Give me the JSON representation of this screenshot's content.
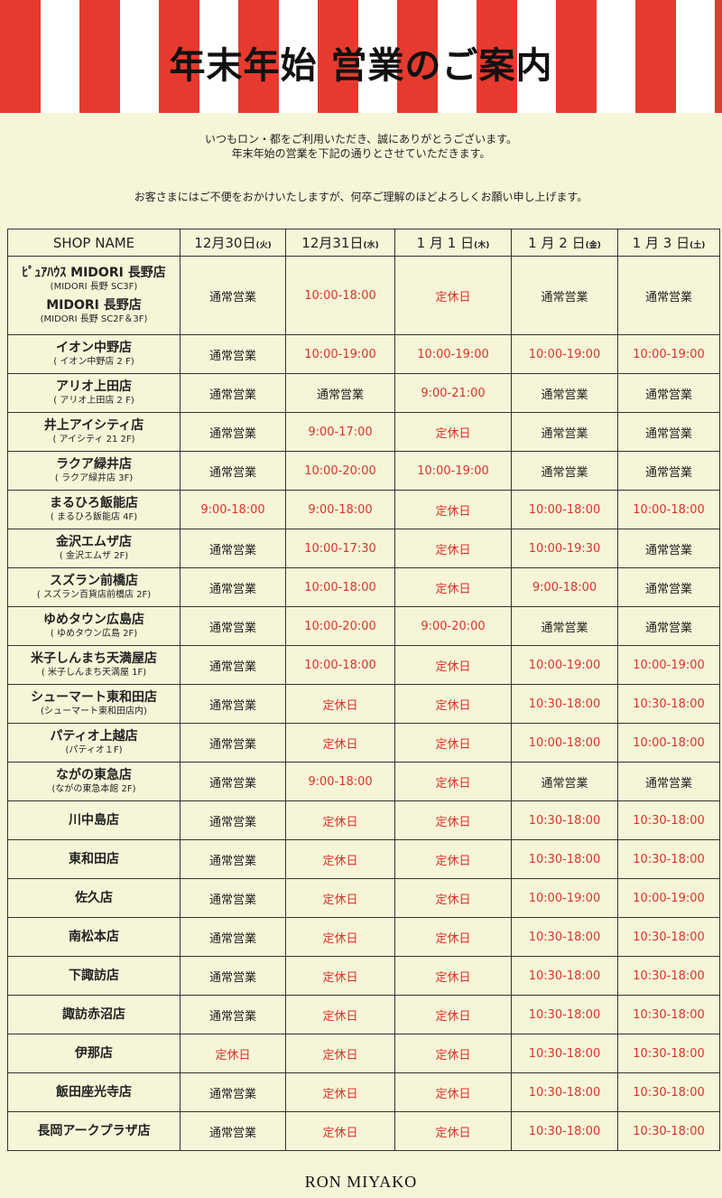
{
  "title": "年末年始 営業のご案内",
  "intro": [
    "いつもロン・都をご利用いただき、誠にありがとうございます。",
    "年末年始の営業を下記の通りとさせていただきます。"
  ],
  "notice": "お客さまにはご不便をおかけいたしますが、何卒ご理解のほどよろしくお願い申し上げます。",
  "colors": {
    "stripe_red": "#e63a2e",
    "background": "#f7f5d8",
    "special_hours": "#d9342b"
  },
  "table": {
    "headers": [
      {
        "main": "SHOP NAME",
        "day": ""
      },
      {
        "main": "12月30日",
        "day": "(火)"
      },
      {
        "main": "12月31日",
        "day": "(水)"
      },
      {
        "main": "1 月 1 日",
        "day": "(木)"
      },
      {
        "main": "1 月 2 日",
        "day": "(金)"
      },
      {
        "main": "1 月 3 日",
        "day": "(土)"
      }
    ],
    "rows": [
      {
        "name": "ﾋﾟｭｱﾊｳｽ MIDORI 長野店",
        "sub": "(MIDORI 長野 SC3F)",
        "name2": "MIDORI 長野店",
        "sub2": "(MIDORI 長野 SC2F＆3F)",
        "cells": [
          "通常営業",
          "10:00-18:00",
          "定休日",
          "通常営業",
          "通常営業"
        ]
      },
      {
        "name": "イオン中野店",
        "sub": "( イオン中野店 2 F)",
        "cells": [
          "通常営業",
          "10:00-19:00",
          "10:00-19:00",
          "10:00-19:00",
          "10:00-19:00"
        ]
      },
      {
        "name": "アリオ上田店",
        "sub": "( アリオ上田店 2 F)",
        "cells": [
          "通常営業",
          "通常営業",
          "9:00-21:00",
          "通常営業",
          "通常営業"
        ]
      },
      {
        "name": "井上アイシティ店",
        "sub": "( アイシティ 21 2F)",
        "cells": [
          "通常営業",
          "9:00-17:00",
          "定休日",
          "通常営業",
          "通常営業"
        ]
      },
      {
        "name": "ラクア緑井店",
        "sub": "( ラクア緑井店 3F)",
        "cells": [
          "通常営業",
          "10:00-20:00",
          "10:00-19:00",
          "通常営業",
          "通常営業"
        ]
      },
      {
        "name": "まるひろ飯能店",
        "sub": "( まるひろ飯能店 4F)",
        "cells": [
          "9:00-18:00",
          "9:00-18:00",
          "定休日",
          "10:00-18:00",
          "10:00-18:00"
        ]
      },
      {
        "name": "金沢エムザ店",
        "sub": "( 金沢エムザ 2F)",
        "cells": [
          "通常営業",
          "10:00-17:30",
          "定休日",
          "10:00-19:30",
          "通常営業"
        ]
      },
      {
        "name": "スズラン前橋店",
        "sub": "( スズラン百貨店前橋店 2F)",
        "cells": [
          "通常営業",
          "10:00-18:00",
          "定休日",
          "9:00-18:00",
          "通常営業"
        ]
      },
      {
        "name": "ゆめタウン広島店",
        "sub": "( ゆめタウン広島 2F)",
        "cells": [
          "通常営業",
          "10:00-20:00",
          "9:00-20:00",
          "通常営業",
          "通常営業"
        ]
      },
      {
        "name": "米子しんまち天満屋店",
        "sub": "( 米子しんまち天満屋 1F)",
        "cells": [
          "通常営業",
          "10:00-18:00",
          "定休日",
          "10:00-19:00",
          "10:00-19:00"
        ]
      },
      {
        "name": "シューマート東和田店",
        "sub": "(シューマート東和田店内)",
        "cells": [
          "通常営業",
          "定休日",
          "定休日",
          "10:30-18:00",
          "10:30-18:00"
        ]
      },
      {
        "name": "パティオ上越店",
        "sub": "(パティオ１F)",
        "cells": [
          "通常営業",
          "定休日",
          "定休日",
          "10:00-18:00",
          "10:00-18:00"
        ]
      },
      {
        "name": "ながの東急店",
        "sub": "(ながの東急本館 2F)",
        "cells": [
          "通常営業",
          "9:00-18:00",
          "定休日",
          "通常営業",
          "通常営業"
        ]
      },
      {
        "name": "川中島店",
        "cells": [
          "通常営業",
          "定休日",
          "定休日",
          "10:30-18:00",
          "10:30-18:00"
        ]
      },
      {
        "name": "東和田店",
        "cells": [
          "通常営業",
          "定休日",
          "定休日",
          "10:30-18:00",
          "10:30-18:00"
        ]
      },
      {
        "name": "佐久店",
        "cells": [
          "通常営業",
          "定休日",
          "定休日",
          "10:00-19:00",
          "10:00-19:00"
        ]
      },
      {
        "name": "南松本店",
        "cells": [
          "通常営業",
          "定休日",
          "定休日",
          "10:30-18:00",
          "10:30-18:00"
        ]
      },
      {
        "name": "下諏訪店",
        "cells": [
          "通常営業",
          "定休日",
          "定休日",
          "10:30-18:00",
          "10:30-18:00"
        ]
      },
      {
        "name": "諏訪赤沼店",
        "cells": [
          "通常営業",
          "定休日",
          "定休日",
          "10:30-18:00",
          "10:30-18:00"
        ]
      },
      {
        "name": "伊那店",
        "cells": [
          "定休日",
          "定休日",
          "定休日",
          "10:30-18:00",
          "10:30-18:00"
        ]
      },
      {
        "name": "飯田座光寺店",
        "cells": [
          "通常営業",
          "定休日",
          "定休日",
          "10:30-18:00",
          "10:30-18:00"
        ]
      },
      {
        "name": "長岡アークプラザ店",
        "cells": [
          "通常営業",
          "定休日",
          "定休日",
          "10:30-18:00",
          "10:30-18:00"
        ]
      }
    ]
  },
  "footer": "RON MIYAKO"
}
